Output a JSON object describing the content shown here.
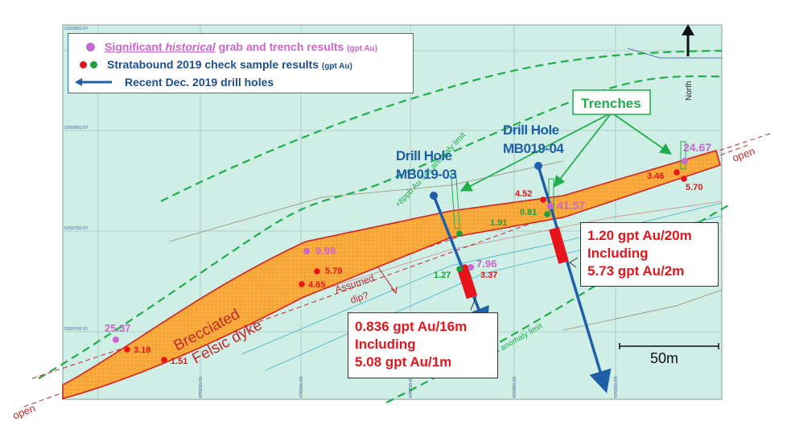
{
  "legend": {
    "row1": {
      "prefix": "Significant ",
      "italic": "historical",
      "suffix": " grab and trench results",
      "unit": "(gpt Au)"
    },
    "row2": {
      "text": "Stratabound 2019 check sample results",
      "unit": "(gpt Au)"
    },
    "row3": {
      "text": "Recent Dec. 2019 drill holes"
    }
  },
  "north_label": "North",
  "trenches_label": "Trenches",
  "drill_holes": [
    {
      "line1": "Drill Hole",
      "line2": "MB019-03"
    },
    {
      "line1": "Drill Hole",
      "line2": "MB019-04"
    }
  ],
  "dyke_label": {
    "line1": "Brecciated",
    "line2": "Felsic dyke"
  },
  "assumed_dip": {
    "line1": "Assumed",
    "line2": "dip?"
  },
  "open_labels": [
    "open",
    "open"
  ],
  "anomaly_labels": [
    "+8ppb Au Soil anomaly limit",
    "+8ppb Au Soil anomaly limit"
  ],
  "scale_label": "50m",
  "grid_labels": {
    "northings": [
      "5263850.0Y",
      "5263800.0Y",
      "5263750.0Y",
      "5263700.0Y"
    ],
    "eastings": [
      "670150.0X",
      "670200.0X",
      "670250.0X",
      "670300.0X",
      "670350.0X"
    ]
  },
  "historical_values": [
    "25.37",
    "9.98",
    "7.96",
    "41.57",
    "24.67"
  ],
  "check_values": [
    "3.18",
    "1.51",
    "5.79",
    "4.65",
    "3.37",
    "1.27",
    "1.91",
    "4.52",
    "0.81",
    "3.46",
    "5.70"
  ],
  "result_boxes": [
    {
      "line1": "0.836 gpt Au/16m",
      "line2": "Including",
      "line3": "5.08 gpt Au/1m"
    },
    {
      "line1": "1.20 gpt Au/20m",
      "line2": "Including",
      "line3": "5.73 gpt Au/2m"
    }
  ],
  "colors": {
    "map_background": "#cfeee6",
    "dyke_fill": "#f7a838",
    "dyke_outline": "#d9201e",
    "anomaly_dash": "#1fae4b",
    "drill_hole": "#1f5fa8",
    "historical_dot": "#cc66cc",
    "check_red": "#e8141c",
    "check_green": "#1e9e3c",
    "trench_label": "#1fae4b"
  }
}
